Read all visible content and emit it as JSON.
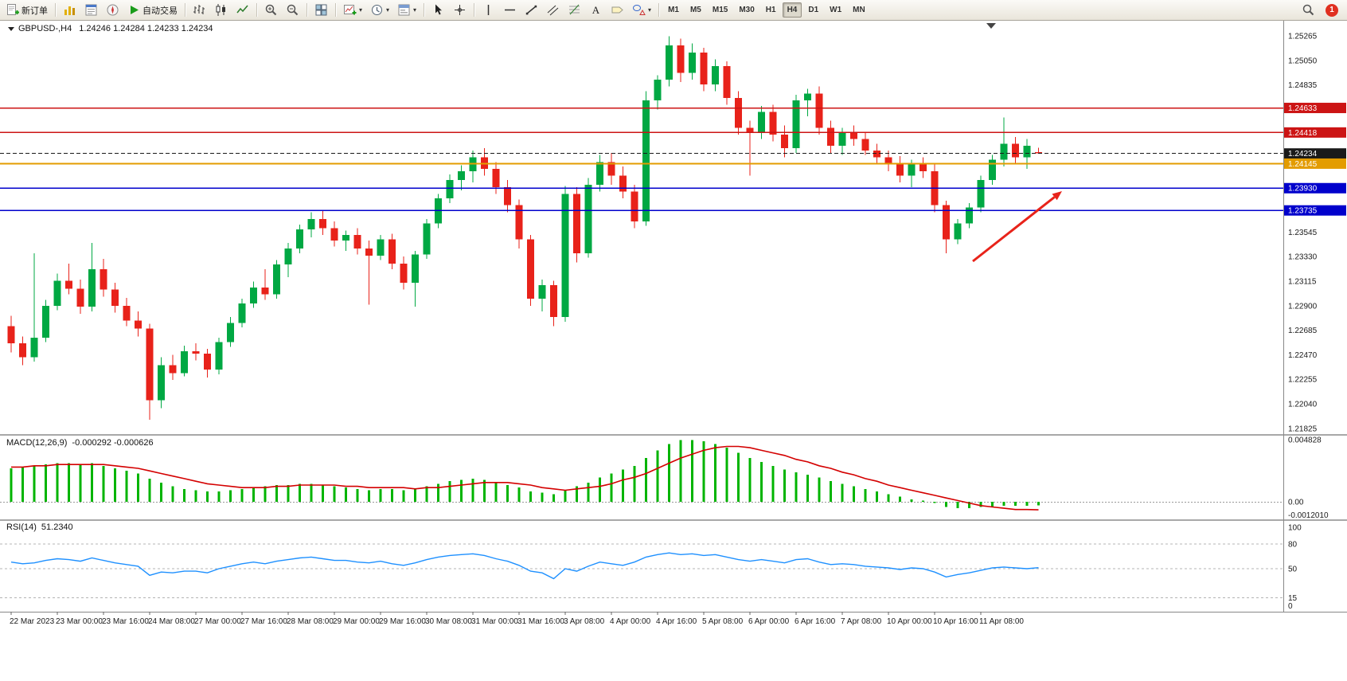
{
  "toolbar": {
    "items": [
      {
        "name": "new-order-button",
        "icon": "new-order-icon",
        "label": "新订单"
      },
      {
        "sep": true
      },
      {
        "name": "market-watch-button",
        "icon": "market-watch-icon"
      },
      {
        "name": "data-window-button",
        "icon": "data-window-icon"
      },
      {
        "name": "navigator-button",
        "icon": "navigator-icon"
      },
      {
        "name": "autotrade-button",
        "icon": "autotrade-icon",
        "label": "自动交易"
      },
      {
        "sep": true
      },
      {
        "name": "bar-chart-button",
        "icon": "bar-chart-icon"
      },
      {
        "name": "candlestick-chart-button",
        "icon": "candlestick-icon"
      },
      {
        "name": "line-chart-button",
        "icon": "line-chart-icon"
      },
      {
        "sep": true
      },
      {
        "name": "zoom-in-button",
        "icon": "zoom-in-icon"
      },
      {
        "name": "zoom-out-button",
        "icon": "zoom-out-icon"
      },
      {
        "sep": true
      },
      {
        "name": "tile-windows-button",
        "icon": "tile-windows-icon"
      },
      {
        "sep": true
      },
      {
        "name": "new-chart-button",
        "icon": "new-chart-icon",
        "dropdown": true
      },
      {
        "name": "periods-button",
        "icon": "clock-icon",
        "dropdown": true
      },
      {
        "name": "templates-button",
        "icon": "template-icon",
        "dropdown": true
      },
      {
        "sep": true
      },
      {
        "name": "cursor-button",
        "icon": "cursor-icon"
      },
      {
        "name": "crosshair-button",
        "icon": "crosshair-icon"
      },
      {
        "sep": true
      },
      {
        "name": "vertical-line-button",
        "icon": "vertical-line-icon"
      },
      {
        "name": "horizontal-line-button",
        "icon": "horizontal-line-icon"
      },
      {
        "name": "trendline-button",
        "icon": "trendline-icon"
      },
      {
        "name": "channel-button",
        "icon": "channel-icon"
      },
      {
        "name": "fibonacci-button",
        "icon": "fibonacci-icon"
      },
      {
        "name": "text-button",
        "icon": "text-icon"
      },
      {
        "name": "label-button",
        "icon": "label-icon"
      },
      {
        "name": "shapes-button",
        "icon": "shapes-icon",
        "dropdown": true
      },
      {
        "sep": true
      }
    ],
    "timeframes": [
      "M1",
      "M5",
      "M15",
      "M30",
      "H1",
      "H4",
      "D1",
      "W1",
      "MN"
    ],
    "active_timeframe": "H4",
    "notification_count": "1"
  },
  "chart": {
    "symbol_period": "GBPUSD-,H4",
    "ohlc": "1.24246 1.24284 1.24233 1.24234",
    "bid_price": "1.24234",
    "price_axis_labels": [
      "1.25265",
      "1.25050",
      "1.24835",
      "1.23545",
      "1.23330",
      "1.23115",
      "1.22900",
      "1.22685",
      "1.22470",
      "1.22255",
      "1.22040",
      "1.21825"
    ],
    "levels": [
      {
        "price": 1.24633,
        "label": "1.24633",
        "color": "#cc1414",
        "style": "solid",
        "width": 1.5
      },
      {
        "price": 1.24418,
        "label": "1.24418",
        "color": "#cc1414",
        "style": "solid",
        "width": 1.5
      },
      {
        "price": 1.24234,
        "label": "1.24234",
        "color": "#1a1a1a",
        "style": "dash",
        "width": 1
      },
      {
        "price": 1.24145,
        "label": "1.24145",
        "color": "#e39c00",
        "style": "solid",
        "width": 2
      },
      {
        "price": 1.2393,
        "label": "1.23930",
        "color": "#0000cc",
        "style": "solid",
        "width": 1.5
      },
      {
        "price": 1.23735,
        "label": "1.23735",
        "color": "#0000cc",
        "style": "solid",
        "width": 1.5
      }
    ]
  },
  "macd": {
    "title": "MACD(12,26,9)",
    "values": "-0.000292 -0.000626",
    "axis_labels": [
      "0.004828",
      "0.00",
      "-0.0012010"
    ]
  },
  "rsi": {
    "title": "RSI(14)",
    "value": "51.2340",
    "axis_labels": [
      "100",
      "80",
      "50",
      "15",
      "0"
    ],
    "levels": [
      80,
      50,
      15
    ]
  },
  "time_axis_labels": [
    "22 Mar 2023",
    "23 Mar 00:00",
    "23 Mar 16:00",
    "24 Mar 08:00",
    "27 Mar 00:00",
    "27 Mar 16:00",
    "28 Mar 08:00",
    "29 Mar 00:00",
    "29 Mar 16:00",
    "30 Mar 08:00",
    "31 Mar 00:00",
    "31 Mar 16:00",
    "3 Apr 08:00",
    "4 Apr 00:00",
    "4 Apr 16:00",
    "5 Apr 08:00",
    "6 Apr 00:00",
    "6 Apr 16:00",
    "7 Apr 08:00",
    "10 Apr 00:00",
    "10 Apr 16:00",
    "11 Apr 08:00"
  ],
  "colors": {
    "bull": "#00a843",
    "bear": "#e8221a",
    "macd_hist": "#00b400",
    "macd_signal": "#d40000",
    "rsi": "#1e90ff",
    "arrow": "#e8231a",
    "axis_text": "#1a1a1a"
  },
  "annotation": {
    "type": "arrow",
    "color": "#e8231a",
    "points_to_level": "1.23930"
  },
  "chart_data": {
    "type": "candlestick",
    "symbol": "GBPUSD",
    "timeframe": "H4",
    "y_axis_range": [
      1.21825,
      1.25265
    ],
    "horizontal_levels": [
      1.24633,
      1.24418,
      1.24234,
      1.24145,
      1.2393,
      1.23735
    ],
    "candles": [
      [
        1.2272,
        1.2281,
        1.2249,
        1.2257
      ],
      [
        1.2257,
        1.2263,
        1.2238,
        1.2245
      ],
      [
        1.2245,
        1.2336,
        1.2241,
        1.2262
      ],
      [
        1.2262,
        1.2295,
        1.2258,
        1.229
      ],
      [
        1.229,
        1.2318,
        1.2286,
        1.2312
      ],
      [
        1.2312,
        1.2327,
        1.23,
        1.2305
      ],
      [
        1.2305,
        1.2313,
        1.2283,
        1.2289
      ],
      [
        1.2289,
        1.2345,
        1.2285,
        1.2322
      ],
      [
        1.2322,
        1.2331,
        1.2298,
        1.2304
      ],
      [
        1.2304,
        1.231,
        1.2284,
        1.229
      ],
      [
        1.229,
        1.2297,
        1.2272,
        1.2277
      ],
      [
        1.2277,
        1.2285,
        1.2263,
        1.227
      ],
      [
        1.227,
        1.2274,
        1.219,
        1.2207
      ],
      [
        1.2207,
        1.2245,
        1.22,
        1.2238
      ],
      [
        1.2238,
        1.2247,
        1.2225,
        1.2231
      ],
      [
        1.2231,
        1.2255,
        1.2228,
        1.225
      ],
      [
        1.225,
        1.2257,
        1.2242,
        1.2248
      ],
      [
        1.2248,
        1.2252,
        1.2227,
        1.2234
      ],
      [
        1.2234,
        1.2262,
        1.223,
        1.2258
      ],
      [
        1.2258,
        1.228,
        1.2254,
        1.2275
      ],
      [
        1.2275,
        1.2296,
        1.2271,
        1.2292
      ],
      [
        1.2292,
        1.2311,
        1.2288,
        1.2306
      ],
      [
        1.2306,
        1.2322,
        1.2295,
        1.23
      ],
      [
        1.23,
        1.233,
        1.2296,
        1.2326
      ],
      [
        1.2326,
        1.2345,
        1.2315,
        1.234
      ],
      [
        1.234,
        1.2361,
        1.2336,
        1.2357
      ],
      [
        1.2357,
        1.2372,
        1.235,
        1.2366
      ],
      [
        1.2366,
        1.2373,
        1.2352,
        1.2358
      ],
      [
        1.2358,
        1.2364,
        1.2342,
        1.2347
      ],
      [
        1.2347,
        1.2356,
        1.2338,
        1.2352
      ],
      [
        1.2352,
        1.2358,
        1.2335,
        1.234
      ],
      [
        1.234,
        1.2347,
        1.2291,
        1.2334
      ],
      [
        1.2334,
        1.2352,
        1.233,
        1.2348
      ],
      [
        1.2348,
        1.2353,
        1.2322,
        1.2327
      ],
      [
        1.2327,
        1.2333,
        1.2304,
        1.231
      ],
      [
        1.231,
        1.2338,
        1.2289,
        1.2335
      ],
      [
        1.2335,
        1.2366,
        1.2331,
        1.2362
      ],
      [
        1.2362,
        1.2388,
        1.2358,
        1.2384
      ],
      [
        1.2384,
        1.2405,
        1.238,
        1.24
      ],
      [
        1.24,
        1.2413,
        1.2391,
        1.2408
      ],
      [
        1.2408,
        1.2426,
        1.2398,
        1.242
      ],
      [
        1.242,
        1.2428,
        1.2404,
        1.241
      ],
      [
        1.241,
        1.2416,
        1.2388,
        1.2394
      ],
      [
        1.2394,
        1.24,
        1.2372,
        1.2378
      ],
      [
        1.2378,
        1.2383,
        1.234,
        1.2348
      ],
      [
        1.2348,
        1.2352,
        1.229,
        1.2296
      ],
      [
        1.2296,
        1.2313,
        1.2285,
        1.2308
      ],
      [
        1.2308,
        1.2312,
        1.2272,
        1.228
      ],
      [
        1.228,
        1.2395,
        1.2276,
        1.2388
      ],
      [
        1.2388,
        1.2394,
        1.2328,
        1.2336
      ],
      [
        1.2336,
        1.2402,
        1.2332,
        1.2396
      ],
      [
        1.2396,
        1.2422,
        1.239,
        1.2416
      ],
      [
        1.2416,
        1.2424,
        1.2396,
        1.2404
      ],
      [
        1.2404,
        1.2412,
        1.2384,
        1.239
      ],
      [
        1.239,
        1.2396,
        1.2358,
        1.2364
      ],
      [
        1.2364,
        1.2478,
        1.236,
        1.247
      ],
      [
        1.247,
        1.2492,
        1.2462,
        1.2488
      ],
      [
        1.2488,
        1.2526,
        1.2482,
        1.2518
      ],
      [
        1.2518,
        1.2524,
        1.2486,
        1.2494
      ],
      [
        1.2494,
        1.252,
        1.2488,
        1.2512
      ],
      [
        1.2512,
        1.2516,
        1.2478,
        1.2484
      ],
      [
        1.2484,
        1.2506,
        1.2478,
        1.25
      ],
      [
        1.25,
        1.2504,
        1.2466,
        1.2472
      ],
      [
        1.2472,
        1.2478,
        1.244,
        1.2446
      ],
      [
        1.2446,
        1.2452,
        1.2404,
        1.2442
      ],
      [
        1.2442,
        1.2465,
        1.2436,
        1.246
      ],
      [
        1.246,
        1.2466,
        1.2434,
        1.244
      ],
      [
        1.244,
        1.2448,
        1.242,
        1.2428
      ],
      [
        1.2428,
        1.2475,
        1.2424,
        1.247
      ],
      [
        1.247,
        1.248,
        1.2456,
        1.2476
      ],
      [
        1.2476,
        1.2482,
        1.244,
        1.2446
      ],
      [
        1.2446,
        1.2452,
        1.2424,
        1.243
      ],
      [
        1.243,
        1.2446,
        1.2422,
        1.2442
      ],
      [
        1.2442,
        1.2448,
        1.243,
        1.2436
      ],
      [
        1.2436,
        1.2442,
        1.2422,
        1.2426
      ],
      [
        1.2426,
        1.2432,
        1.2414,
        1.242
      ],
      [
        1.242,
        1.2426,
        1.2408,
        1.2415
      ],
      [
        1.2415,
        1.2421,
        1.2398,
        1.2404
      ],
      [
        1.2404,
        1.2418,
        1.2394,
        1.2414
      ],
      [
        1.2414,
        1.242,
        1.2402,
        1.2408
      ],
      [
        1.2408,
        1.2414,
        1.2372,
        1.2378
      ],
      [
        1.2378,
        1.2382,
        1.2336,
        1.2348
      ],
      [
        1.2348,
        1.2366,
        1.2344,
        1.2362
      ],
      [
        1.2362,
        1.238,
        1.2358,
        1.2376
      ],
      [
        1.2376,
        1.2404,
        1.2372,
        1.24
      ],
      [
        1.24,
        1.2422,
        1.2396,
        1.2418
      ],
      [
        1.2418,
        1.2455,
        1.2412,
        1.2432
      ],
      [
        1.2432,
        1.2438,
        1.2414,
        1.242
      ],
      [
        1.242,
        1.2436,
        1.241,
        1.243
      ],
      [
        1.24246,
        1.24284,
        1.24233,
        1.24234
      ]
    ],
    "macd_histogram": [
      0.0026,
      0.0027,
      0.0028,
      0.0029,
      0.003,
      0.003,
      0.0029,
      0.003,
      0.0028,
      0.0026,
      0.0024,
      0.0022,
      0.0018,
      0.0015,
      0.0012,
      0.001,
      0.0009,
      0.0008,
      0.0008,
      0.0009,
      0.001,
      0.0011,
      0.0012,
      0.0013,
      0.0013,
      0.0014,
      0.0014,
      0.0013,
      0.0012,
      0.0011,
      0.001,
      0.0009,
      0.001,
      0.001,
      0.0009,
      0.001,
      0.0012,
      0.0014,
      0.0016,
      0.0017,
      0.0018,
      0.0017,
      0.0015,
      0.0013,
      0.0011,
      0.0008,
      0.0007,
      0.0006,
      0.0009,
      0.0012,
      0.0015,
      0.0019,
      0.0022,
      0.0025,
      0.0028,
      0.0034,
      0.004,
      0.0045,
      0.0048,
      0.0048,
      0.0047,
      0.0045,
      0.0042,
      0.0038,
      0.0034,
      0.0031,
      0.0028,
      0.0025,
      0.0023,
      0.0021,
      0.0019,
      0.0016,
      0.0014,
      0.0012,
      0.001,
      0.0008,
      0.0006,
      0.0004,
      0.0002,
      0.0001,
      -0.0001,
      -0.0004,
      -0.0005,
      -0.0005,
      -0.0004,
      -0.0004,
      -0.0003,
      -0.0003,
      -0.0003,
      -0.000292
    ],
    "macd_signal": [
      0.0027,
      0.0027,
      0.0028,
      0.0028,
      0.0029,
      0.0029,
      0.0029,
      0.0029,
      0.0029,
      0.0028,
      0.0027,
      0.0026,
      0.0024,
      0.0022,
      0.002,
      0.0018,
      0.0016,
      0.0014,
      0.0013,
      0.0012,
      0.0011,
      0.0011,
      0.0011,
      0.0012,
      0.0012,
      0.0013,
      0.0013,
      0.0013,
      0.0013,
      0.0012,
      0.0012,
      0.0011,
      0.0011,
      0.0011,
      0.0011,
      0.001,
      0.0011,
      0.0011,
      0.0012,
      0.0013,
      0.0014,
      0.0015,
      0.0015,
      0.0015,
      0.0014,
      0.0013,
      0.0011,
      0.001,
      0.0009,
      0.001,
      0.0011,
      0.0012,
      0.0014,
      0.0017,
      0.0019,
      0.0022,
      0.0026,
      0.003,
      0.0034,
      0.0037,
      0.004,
      0.0042,
      0.0043,
      0.0043,
      0.0042,
      0.004,
      0.0038,
      0.0036,
      0.0033,
      0.0031,
      0.0028,
      0.0026,
      0.0023,
      0.0021,
      0.0018,
      0.0016,
      0.0013,
      0.0011,
      0.0009,
      0.0007,
      0.0005,
      0.0003,
      0.0001,
      -0.0001,
      -0.0003,
      -0.0004,
      -0.0005,
      -0.0006,
      -0.0006,
      -0.000626
    ],
    "rsi": [
      58,
      56,
      57,
      60,
      62,
      61,
      59,
      63,
      60,
      57,
      55,
      53,
      42,
      46,
      45,
      47,
      47,
      45,
      50,
      53,
      56,
      58,
      56,
      59,
      61,
      63,
      64,
      62,
      60,
      60,
      58,
      57,
      59,
      56,
      54,
      57,
      61,
      64,
      66,
      67,
      68,
      66,
      62,
      59,
      54,
      47,
      45,
      38,
      50,
      47,
      53,
      58,
      56,
      54,
      58,
      64,
      67,
      69,
      67,
      68,
      66,
      67,
      64,
      61,
      59,
      61,
      59,
      57,
      61,
      62,
      58,
      55,
      56,
      55,
      53,
      52,
      51,
      49,
      51,
      50,
      46,
      40,
      43,
      45,
      48,
      51,
      52,
      51,
      50,
      51.23
    ]
  }
}
